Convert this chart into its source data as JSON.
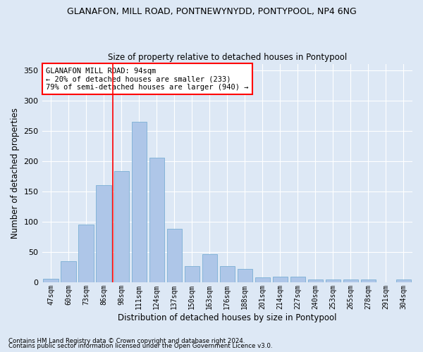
{
  "title": "GLANAFON, MILL ROAD, PONTNEWYNYDD, PONTYPOOL, NP4 6NG",
  "subtitle": "Size of property relative to detached houses in Pontypool",
  "xlabel": "Distribution of detached houses by size in Pontypool",
  "ylabel": "Number of detached properties",
  "categories": [
    "47sqm",
    "60sqm",
    "73sqm",
    "86sqm",
    "98sqm",
    "111sqm",
    "124sqm",
    "137sqm",
    "150sqm",
    "163sqm",
    "176sqm",
    "188sqm",
    "201sqm",
    "214sqm",
    "227sqm",
    "240sqm",
    "253sqm",
    "265sqm",
    "278sqm",
    "291sqm",
    "304sqm"
  ],
  "values": [
    6,
    35,
    95,
    160,
    183,
    265,
    206,
    88,
    27,
    46,
    27,
    22,
    8,
    9,
    9,
    5,
    4,
    4,
    4,
    0,
    4
  ],
  "bar_color": "#aec6e8",
  "bar_edge_color": "#7aafd4",
  "background_color": "#dde8f5",
  "grid_color": "#ffffff",
  "vline_x": 4.0,
  "vline_color": "red",
  "annotation_text": "GLANAFON MILL ROAD: 94sqm\n← 20% of detached houses are smaller (233)\n79% of semi-detached houses are larger (940) →",
  "annotation_box_color": "white",
  "annotation_box_edge": "red",
  "ylim": [
    0,
    360
  ],
  "yticks": [
    0,
    50,
    100,
    150,
    200,
    250,
    300,
    350
  ],
  "footer1": "Contains HM Land Registry data © Crown copyright and database right 2024.",
  "footer2": "Contains public sector information licensed under the Open Government Licence v3.0."
}
